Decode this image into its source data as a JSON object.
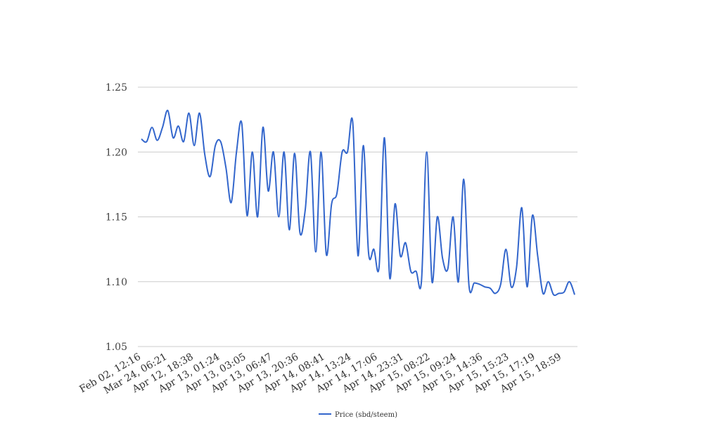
{
  "chart_data": {
    "type": "line",
    "title": "",
    "xlabel": "",
    "ylabel": "",
    "ylim": [
      1.05,
      1.25
    ],
    "yticks": [
      1.25,
      1.2,
      1.15,
      1.1,
      1.05
    ],
    "ytick_labels": [
      "1.25",
      "1.20",
      "1.15",
      "1.10",
      "1.05"
    ],
    "xtick_labels": [
      "Feb 02, 12:16",
      "Mar 24, 06:21",
      "Apr 12, 18:38",
      "Apr 13, 01:24",
      "Apr 13, 03:05",
      "Apr 13, 06:47",
      "Apr 13, 20:36",
      "Apr 14, 08:41",
      "Apr 14, 13:24",
      "Apr 14, 17:06",
      "Apr 14, 23:31",
      "Apr 15, 08:22",
      "Apr 15, 09:24",
      "Apr 15, 14:36",
      "Apr 15, 15:23",
      "Apr 15, 17:19",
      "Apr 15, 18:59"
    ],
    "grid": true,
    "legend_position": "bottom",
    "series": [
      {
        "name": "Price (sbd/steem)",
        "color": "#3366cc",
        "values": [
          1.21,
          1.208,
          1.219,
          1.209,
          1.219,
          1.232,
          1.211,
          1.22,
          1.208,
          1.23,
          1.205,
          1.23,
          1.198,
          1.181,
          1.205,
          1.208,
          1.188,
          1.161,
          1.2,
          1.222,
          1.151,
          1.2,
          1.15,
          1.219,
          1.17,
          1.2,
          1.15,
          1.2,
          1.14,
          1.199,
          1.138,
          1.155,
          1.2,
          1.123,
          1.2,
          1.121,
          1.16,
          1.168,
          1.2,
          1.2,
          1.223,
          1.12,
          1.205,
          1.122,
          1.125,
          1.112,
          1.211,
          1.103,
          1.16,
          1.12,
          1.13,
          1.108,
          1.108,
          1.1,
          1.2,
          1.1,
          1.15,
          1.118,
          1.11,
          1.15,
          1.1,
          1.179,
          1.097,
          1.099,
          1.098,
          1.096,
          1.095,
          1.091,
          1.098,
          1.125,
          1.096,
          1.111,
          1.157,
          1.096,
          1.151,
          1.12,
          1.091,
          1.1,
          1.09,
          1.091,
          1.092,
          1.1,
          1.09
        ]
      }
    ]
  }
}
